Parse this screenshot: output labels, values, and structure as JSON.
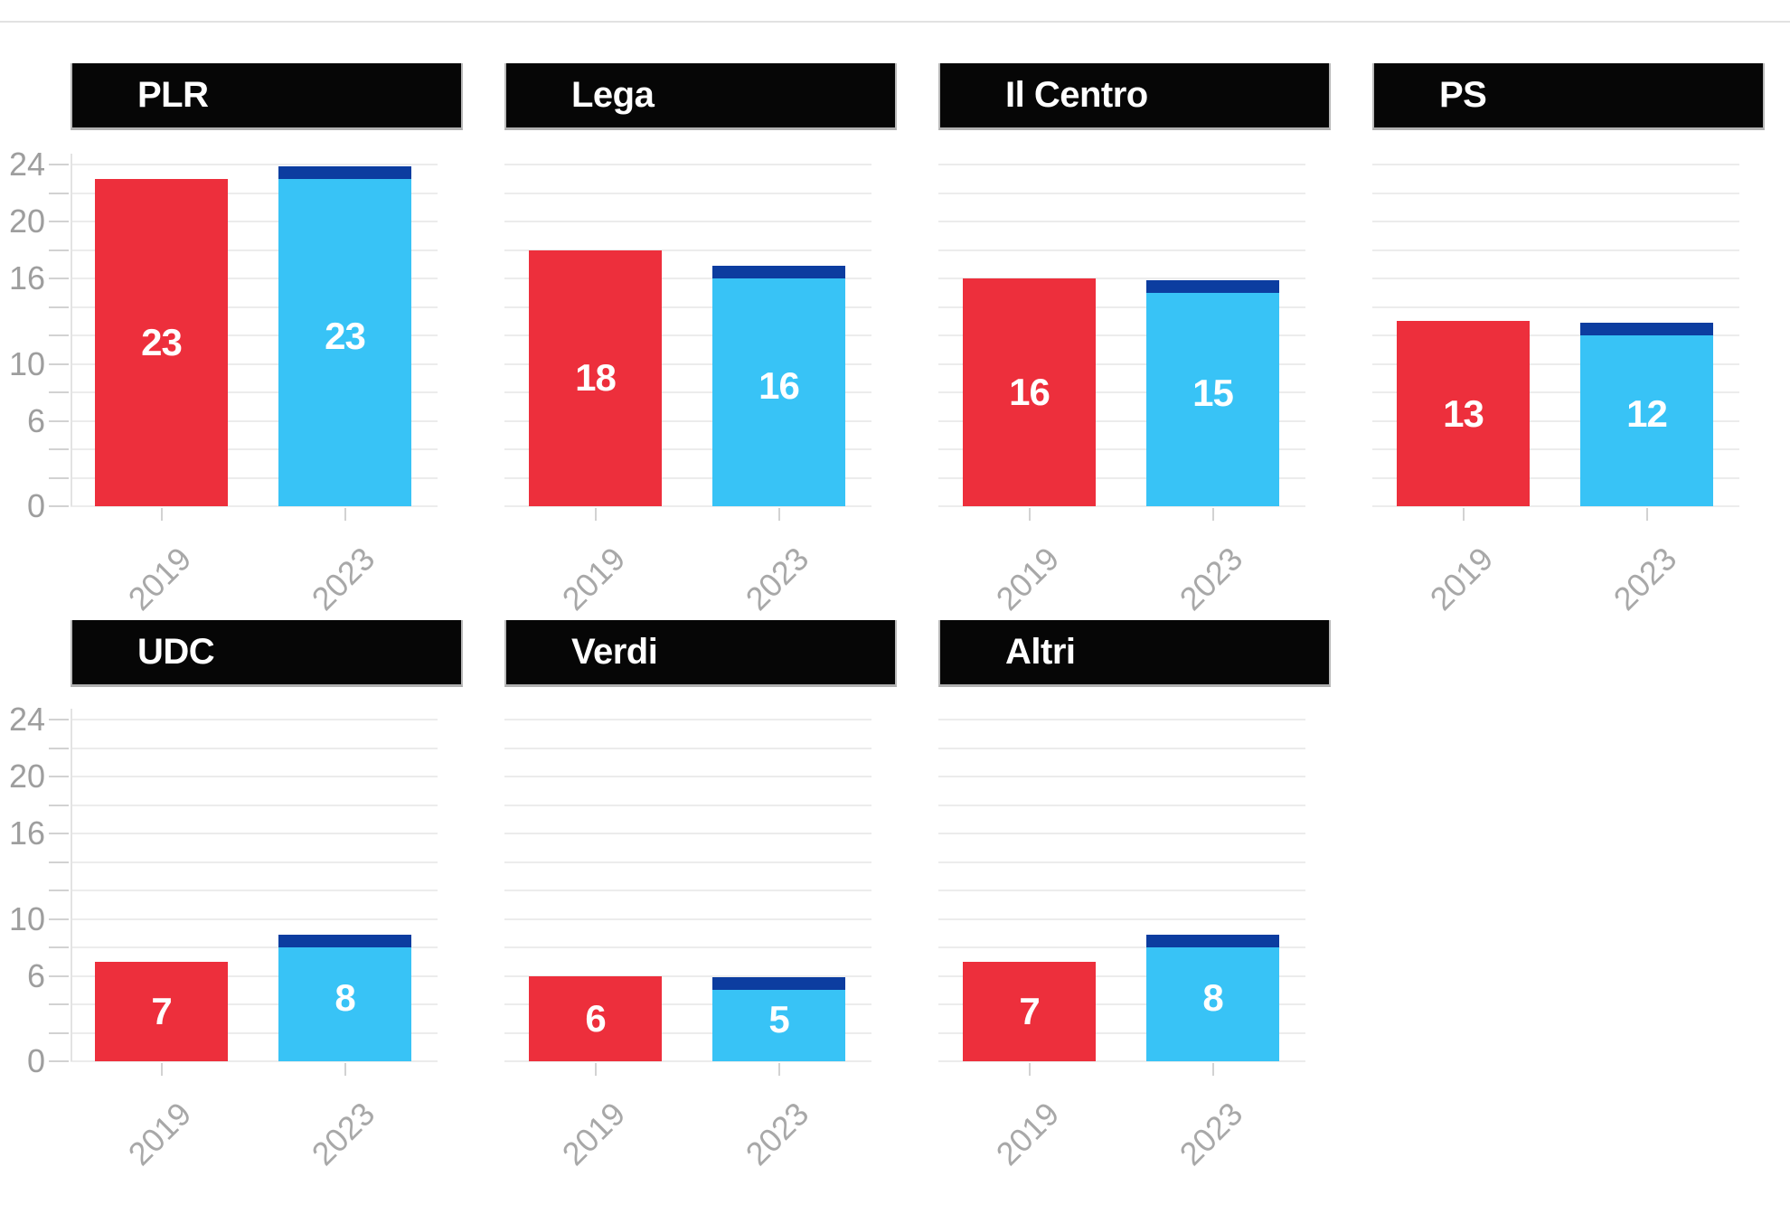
{
  "chart_data": {
    "type": "bar",
    "layout": "small-multiples, 4 columns x 2 rows, gridlines on, no legend, seat counts by party",
    "categories": [
      "2019",
      "2023"
    ],
    "panels": [
      {
        "title": "PLR",
        "values": [
          23,
          23
        ]
      },
      {
        "title": "Lega",
        "values": [
          18,
          16
        ]
      },
      {
        "title": "Il Centro",
        "values": [
          16,
          15
        ]
      },
      {
        "title": "PS",
        "values": [
          13,
          12
        ]
      },
      {
        "title": "UDC",
        "values": [
          7,
          8
        ]
      },
      {
        "title": "Verdi",
        "values": [
          6,
          5
        ]
      },
      {
        "title": "Altri",
        "values": [
          7,
          8
        ]
      }
    ],
    "y_axis": {
      "tick_labels": [
        24,
        20,
        16,
        10,
        6,
        0
      ],
      "grid_step": 2,
      "min": 0,
      "max": 24
    },
    "x_axis": {
      "label_rotation": -45
    },
    "series_colors": {
      "bar_2019": "#ed2f3c",
      "bar_2023": "#38c3f6",
      "bar_2023_cap": "#0c3da0"
    }
  },
  "style": {
    "title_bg": "#060606",
    "title_text": "#ffffff",
    "value_text": "#ffffff",
    "grid_color": "#ececec",
    "tick_color": "#d2d2d2",
    "axis_line_color": "#e3e3e3",
    "y_label_color": "#9e9e9e",
    "x_label_color": "#a8a8a8",
    "divider_color": "#e2e2e2",
    "background": "#ffffff"
  }
}
